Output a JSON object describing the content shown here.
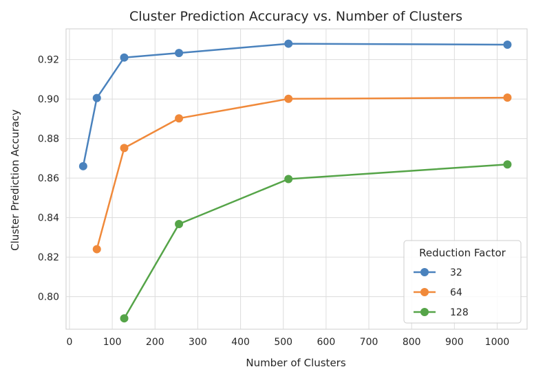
{
  "chart_data": {
    "type": "line",
    "title": "Cluster Prediction Accuracy vs. Number of Clusters",
    "xlabel": "Number of Clusters",
    "ylabel": "Cluster Prediction Accuracy",
    "xlim": [
      -8,
      1070
    ],
    "ylim": [
      0.7835,
      0.9355
    ],
    "xticks": [
      0,
      100,
      200,
      300,
      400,
      500,
      600,
      700,
      800,
      900,
      1000
    ],
    "yticks": [
      0.8,
      0.82,
      0.84,
      0.86,
      0.88,
      0.9,
      0.92
    ],
    "ytick_labels": [
      "0.80",
      "0.82",
      "0.84",
      "0.86",
      "0.88",
      "0.90",
      "0.92"
    ],
    "grid": true,
    "legend": {
      "title": "Reduction Factor",
      "placement": "lower-right"
    },
    "series": [
      {
        "name": "32",
        "color": "#4a82bd",
        "x": [
          32,
          64,
          128,
          256,
          512,
          1024
        ],
        "y": [
          0.866,
          0.9005,
          0.921,
          0.9233,
          0.928,
          0.9275
        ]
      },
      {
        "name": "64",
        "color": "#f0893a",
        "x": [
          64,
          128,
          256,
          512,
          1024
        ],
        "y": [
          0.824,
          0.8752,
          0.8902,
          0.9001,
          0.9007
        ]
      },
      {
        "name": "128",
        "color": "#55a448",
        "x": [
          128,
          256,
          512,
          1024
        ],
        "y": [
          0.789,
          0.8367,
          0.8595,
          0.8669
        ]
      }
    ]
  }
}
